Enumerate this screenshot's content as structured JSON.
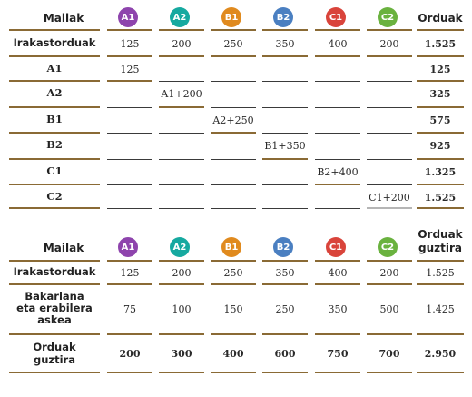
{
  "levels": [
    {
      "label": "A1",
      "color": "#8e44ad"
    },
    {
      "label": "A2",
      "color": "#16a9a0"
    },
    {
      "label": "B1",
      "color": "#e08a1e"
    },
    {
      "label": "B2",
      "color": "#4a7fc1"
    },
    {
      "label": "C1",
      "color": "#d9443b"
    },
    {
      "label": "C2",
      "color": "#6ab23f"
    }
  ],
  "table1": {
    "header": {
      "level_col": "Mailak",
      "total_col": "Orduak"
    },
    "row0": {
      "label": "Irakastorduak",
      "values": [
        "125",
        "200",
        "250",
        "350",
        "400",
        "200"
      ],
      "total": "1.525"
    },
    "rows": [
      {
        "label": "A1",
        "formula": "125",
        "total": "125"
      },
      {
        "label": "A2",
        "formula": "A1+200",
        "total": "325"
      },
      {
        "label": "B1",
        "formula": "A2+250",
        "total": "575"
      },
      {
        "label": "B2",
        "formula": "B1+350",
        "total": "925"
      },
      {
        "label": "C1",
        "formula": "B2+400",
        "total": "1.325"
      },
      {
        "label": "C2",
        "formula": "C1+200",
        "total": "1.525"
      }
    ]
  },
  "table2": {
    "header": {
      "level_col": "Mailak",
      "total_col_line1": "Orduak",
      "total_col_line2": "guztira"
    },
    "row0": {
      "label": "Irakastorduak",
      "values": [
        "125",
        "200",
        "250",
        "350",
        "400",
        "200"
      ],
      "total": "1.525"
    },
    "row1": {
      "label_line1": "Bakarlana",
      "label_line2": "eta erabilera",
      "label_line3": "askea",
      "values": [
        "75",
        "100",
        "150",
        "250",
        "350",
        "500"
      ],
      "total": "1.425"
    },
    "row2": {
      "label_line1": "Orduak",
      "label_line2": "guztira",
      "values": [
        "200",
        "300",
        "400",
        "600",
        "750",
        "700"
      ],
      "total": "2.950"
    }
  }
}
